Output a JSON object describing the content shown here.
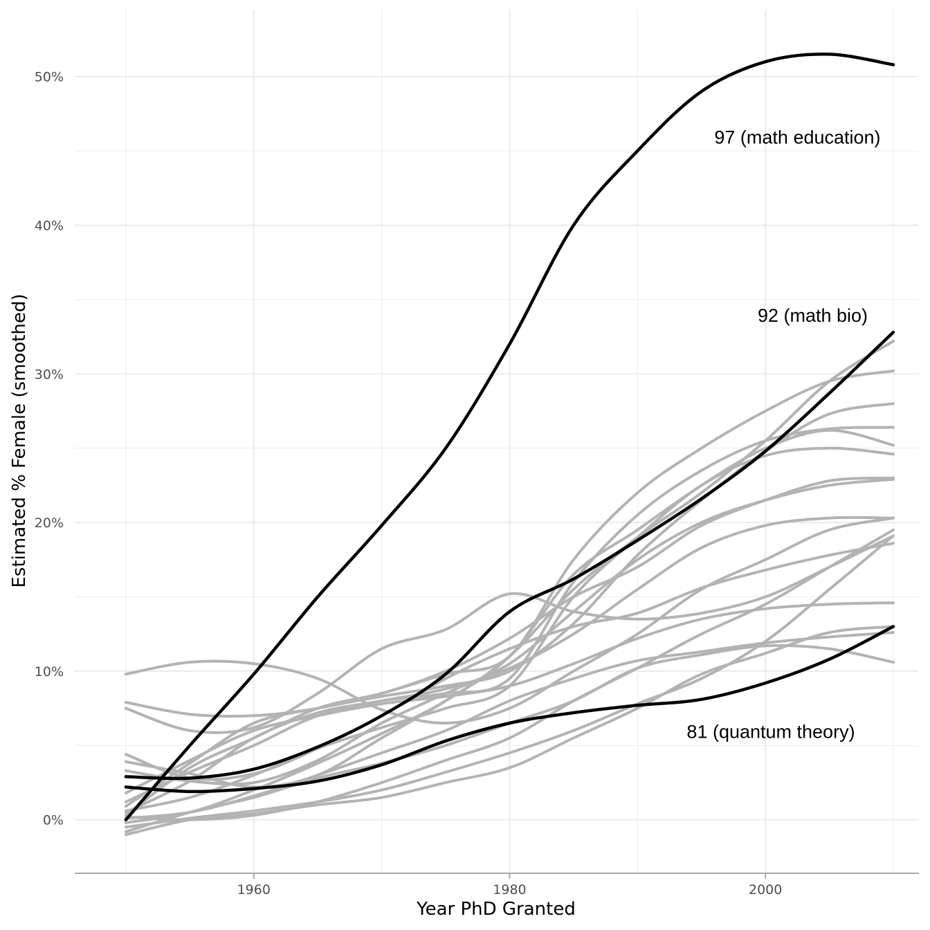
{
  "chart_data": {
    "type": "line",
    "title": "",
    "xlabel": "Year PhD Granted",
    "ylabel": "Estimated % Female (smoothed)",
    "xlim": [
      1946,
      2012
    ],
    "ylim": [
      -3.6,
      54.5
    ],
    "x_ticks": [
      1960,
      1980,
      2000
    ],
    "y_ticks": [
      0,
      10,
      20,
      30,
      40,
      50
    ],
    "y_tick_labels": [
      "0%",
      "10%",
      "20%",
      "30%",
      "40%",
      "50%"
    ],
    "grid": true,
    "legend": "none",
    "colors": {
      "highlight": "#000000",
      "background": "#b3b3b3",
      "grid": "#ebebeb",
      "axis": "#a8a8a8"
    },
    "annotations": [
      {
        "text": "97 (math education)",
        "x": 2009,
        "y": 45.5,
        "anchor": "end"
      },
      {
        "text": "92 (math bio)",
        "x": 2008,
        "y": 33.5,
        "anchor": "end"
      },
      {
        "text": "81 (quantum theory)",
        "x": 2007,
        "y": 5.5,
        "anchor": "end"
      }
    ],
    "x": [
      1950,
      1955,
      1960,
      1965,
      1970,
      1975,
      1980,
      1985,
      1990,
      1995,
      2000,
      2005,
      2010
    ],
    "series": [
      {
        "highlight": true,
        "values": [
          0,
          5,
          9.8,
          15,
          19.8,
          25,
          32,
          40,
          45,
          49,
          51,
          51.5,
          50.8
        ]
      },
      {
        "highlight": true,
        "values": [
          2.9,
          2.8,
          3.4,
          4.9,
          7,
          9.8,
          14,
          16.2,
          18.8,
          21.6,
          24.8,
          28.7,
          32.8
        ]
      },
      {
        "highlight": true,
        "values": [
          2.2,
          1.9,
          2.1,
          2.6,
          3.7,
          5.3,
          6.5,
          7.2,
          7.7,
          8.1,
          9.2,
          10.8,
          13
        ]
      },
      {
        "highlight": false,
        "values": [
          9.8,
          10.6,
          10.5,
          9.5,
          7.4,
          6.5,
          7.5,
          10,
          12.5,
          15.5,
          17.5,
          19.5,
          20.3
        ]
      },
      {
        "highlight": false,
        "values": [
          7.9,
          7.1,
          7.0,
          7.5,
          8.5,
          10,
          12.2,
          15,
          17,
          19.8,
          21.5,
          22.8,
          23
        ]
      },
      {
        "highlight": false,
        "values": [
          7.5,
          6.0,
          6.2,
          8.5,
          11.5,
          12.8,
          15.2,
          14,
          13.5,
          13.9,
          15,
          17,
          19.1
        ]
      },
      {
        "highlight": false,
        "values": [
          4.4,
          2.8,
          3.1,
          4.8,
          7.0,
          9.5,
          11.5,
          13,
          13.9,
          15.6,
          16.8,
          17.8,
          18.6
        ]
      },
      {
        "highlight": false,
        "values": [
          3.9,
          3.1,
          2.2,
          3.0,
          5.5,
          8,
          11,
          16.5,
          19.5,
          22.5,
          25,
          26.2,
          25.2
        ]
      },
      {
        "highlight": false,
        "values": [
          3.3,
          2.6,
          2.5,
          4.0,
          6.5,
          8.5,
          10.5,
          14,
          17.5,
          20,
          21.5,
          22.5,
          22.9
        ]
      },
      {
        "highlight": false,
        "values": [
          0.3,
          3.5,
          5.5,
          7.5,
          8.5,
          9.8,
          11,
          17.5,
          22,
          25,
          27.5,
          29.5,
          30.2
        ]
      },
      {
        "highlight": false,
        "values": [
          1.2,
          3.2,
          5.0,
          7.0,
          8.0,
          8.5,
          9.5,
          16,
          20.5,
          23.5,
          25.5,
          26.3,
          26.4
        ]
      },
      {
        "highlight": false,
        "values": [
          0.9,
          3.8,
          6.5,
          7.5,
          8.3,
          9.0,
          10.0,
          13.2,
          17.8,
          21.5,
          24.8,
          27.3,
          28.0
        ]
      },
      {
        "highlight": false,
        "values": [
          0.5,
          2.6,
          5.5,
          7.2,
          8.0,
          8.8,
          10.2,
          12.5,
          15.5,
          18.3,
          19.8,
          20.3,
          20.3
        ]
      },
      {
        "highlight": false,
        "values": [
          1.8,
          4.0,
          6.0,
          7.0,
          7.8,
          8.3,
          9.0,
          10.5,
          12.2,
          13.5,
          14.2,
          14.5,
          14.6
        ]
      },
      {
        "highlight": false,
        "values": [
          0.6,
          1.5,
          3.0,
          4.8,
          6.2,
          7.5,
          9.0,
          15.0,
          19.0,
          22.5,
          24.5,
          25.0,
          24.6
        ]
      },
      {
        "highlight": false,
        "values": [
          -0.2,
          0.5,
          2.0,
          3.8,
          5.8,
          8.0,
          11.0,
          15.5,
          19.0,
          22.0,
          25.5,
          29.5,
          32.2
        ]
      },
      {
        "highlight": false,
        "values": [
          0.1,
          0.5,
          1.6,
          3.0,
          4.5,
          6.0,
          8.0,
          9.5,
          10.7,
          11.3,
          11.9,
          12.3,
          12.6
        ]
      },
      {
        "highlight": false,
        "values": [
          -0.8,
          0.5,
          1.5,
          2.8,
          3.8,
          5.0,
          6.5,
          8.0,
          10.2,
          11.1,
          11.7,
          11.5,
          10.6
        ]
      },
      {
        "highlight": false,
        "values": [
          -1.0,
          0.0,
          0.4,
          1.0,
          1.5,
          2.5,
          3.5,
          5.5,
          7.5,
          9.8,
          11.2,
          12.6,
          13.0
        ]
      },
      {
        "highlight": false,
        "values": [
          -0.5,
          0.1,
          0.6,
          1.2,
          2.0,
          3.2,
          4.5,
          6.0,
          7.8,
          9.5,
          12.0,
          15.5,
          19.1
        ]
      },
      {
        "highlight": false,
        "values": [
          0.2,
          0.0,
          0.3,
          1.2,
          2.5,
          4.0,
          5.5,
          8.0,
          10.2,
          12.5,
          14.5,
          17.0,
          19.5
        ]
      }
    ]
  }
}
